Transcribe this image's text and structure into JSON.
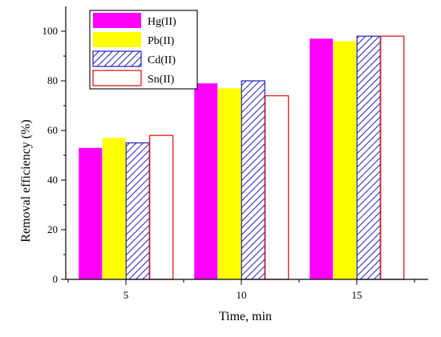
{
  "chart_data": {
    "type": "bar",
    "title": "",
    "xlabel": "Time, min",
    "ylabel": "Removal efficiency (%)",
    "categories": [
      "5",
      "10",
      "15"
    ],
    "ylim": [
      0,
      110
    ],
    "yticks": [
      "0",
      "20",
      "40",
      "60",
      "80",
      "100"
    ],
    "grid": false,
    "legend_position": "top-left",
    "series": [
      {
        "name": "Hg(II)",
        "values": [
          53,
          79,
          97
        ],
        "color": "#ff00ff",
        "style": "solid"
      },
      {
        "name": "Pb(II)",
        "values": [
          57,
          77,
          96
        ],
        "color": "#ffff00",
        "style": "solid"
      },
      {
        "name": "Cd(II)",
        "values": [
          55,
          80,
          98
        ],
        "color": "#1f1fbf",
        "style": "hatched"
      },
      {
        "name": "Sn(II)",
        "values": [
          58,
          74,
          98
        ],
        "color": "#e8191a",
        "style": "outline"
      }
    ]
  }
}
